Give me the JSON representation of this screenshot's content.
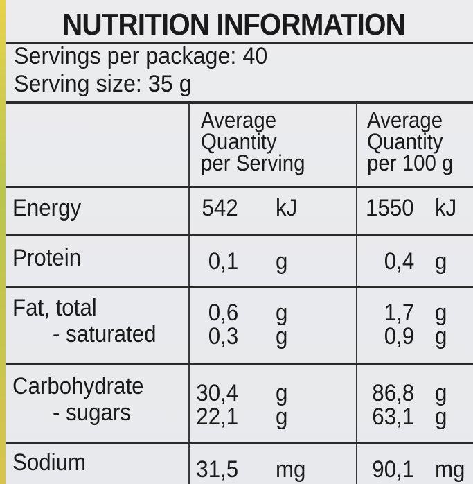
{
  "title": "NUTRITION INFORMATION",
  "servings_per_package": "Servings per package: 40",
  "serving_size": "Serving size: 35 g",
  "columns": {
    "per_serving": [
      "Average",
      "Quantity",
      "per Serving"
    ],
    "per_100g": [
      "Average",
      "Quantity",
      "per 100 g"
    ]
  },
  "rows": [
    {
      "label": "Energy",
      "serving": "542",
      "serving_unit": "kJ",
      "per100": "1550",
      "per100_unit": "kJ"
    },
    {
      "label": "Protein",
      "serving": "0,1",
      "serving_unit": "g",
      "per100": "0,4",
      "per100_unit": "g"
    },
    {
      "label": "Fat, total",
      "serving": "0,6",
      "serving_unit": "g",
      "per100": "1,7",
      "per100_unit": "g"
    },
    {
      "label": "- saturated",
      "serving": "0,3",
      "serving_unit": "g",
      "per100": "0,9",
      "per100_unit": "g"
    },
    {
      "label": "Carbohydrate",
      "serving": "30,4",
      "serving_unit": "g",
      "per100": "86,8",
      "per100_unit": "g"
    },
    {
      "label": "- sugars",
      "serving": "22,1",
      "serving_unit": "g",
      "per100": "63,1",
      "per100_unit": "g"
    },
    {
      "label": "Sodium",
      "serving": "31,5",
      "serving_unit": "mg",
      "per100": "90,1",
      "per100_unit": "mg"
    }
  ]
}
